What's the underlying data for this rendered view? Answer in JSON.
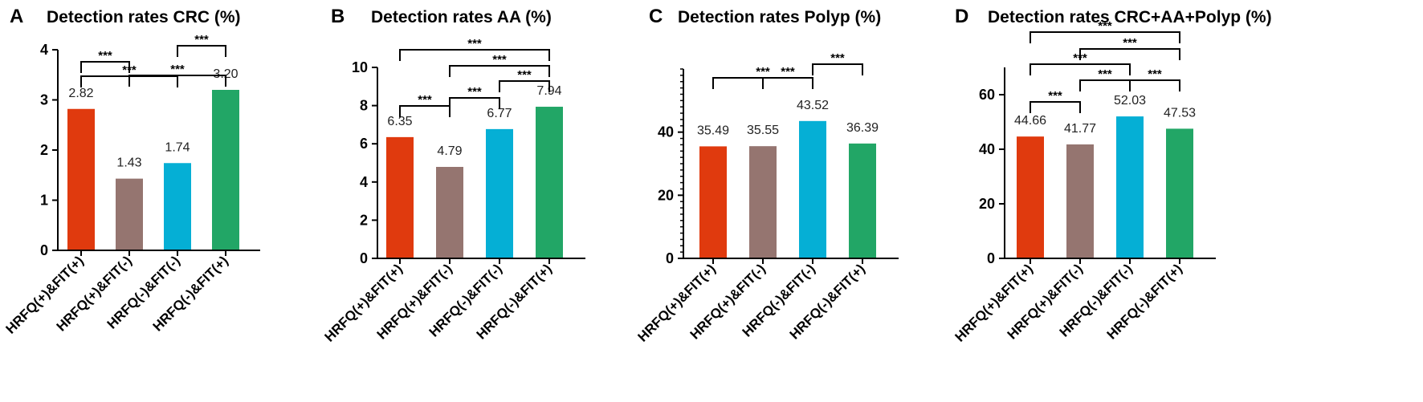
{
  "colors": [
    "#e03a0e",
    "#957570",
    "#05afd5",
    "#22a666"
  ],
  "chart_data": [
    {
      "type": "bar",
      "panel": "A",
      "title": "Detection rates CRC (%)",
      "categories": [
        "HRFQ(+)&FIT(+)",
        "HRFQ(+)&FIT(-)",
        "HRFQ(-)&FIT(-)",
        "HRFQ(-)&FIT(+)"
      ],
      "values": [
        2.82,
        1.43,
        1.74,
        3.2
      ],
      "value_labels": [
        "2.82",
        "1.43",
        "1.74",
        "3.20"
      ],
      "ylim": [
        0,
        4
      ],
      "yticks": [
        0,
        1,
        2,
        3,
        4
      ],
      "minor_ticks": false,
      "significance": [
        {
          "from": 0,
          "to": 1,
          "label": "***"
        },
        {
          "from": 0,
          "to": 2,
          "label": "***"
        },
        {
          "from": 2,
          "to": 3,
          "label": "***"
        },
        {
          "from": 1,
          "to": 3,
          "label": "***"
        }
      ]
    },
    {
      "type": "bar",
      "panel": "B",
      "title": "Detection rates AA (%)",
      "categories": [
        "HRFQ(+)&FIT(+)",
        "HRFQ(+)&FIT(-)",
        "HRFQ(-)&FIT(-)",
        "HRFQ(-)&FIT(+)"
      ],
      "values": [
        6.35,
        4.79,
        6.77,
        7.94
      ],
      "value_labels": [
        "6.35",
        "4.79",
        "6.77",
        "7.94"
      ],
      "ylim": [
        0,
        10
      ],
      "yticks": [
        0,
        2,
        4,
        6,
        8,
        10
      ],
      "minor_ticks": false,
      "significance": [
        {
          "from": 0,
          "to": 1,
          "label": "***"
        },
        {
          "from": 1,
          "to": 2,
          "label": "***"
        },
        {
          "from": 2,
          "to": 3,
          "label": "***"
        },
        {
          "from": 1,
          "to": 3,
          "label": "***"
        },
        {
          "from": 0,
          "to": 3,
          "label": "***"
        }
      ]
    },
    {
      "type": "bar",
      "panel": "C",
      "title": "Detection rates Polyp (%)",
      "categories": [
        "HRFQ(+)&FIT(+)",
        "HRFQ(+)&FIT(-)",
        "HRFQ(-)&FIT(-)",
        "HRFQ(-)&FIT(+)"
      ],
      "values": [
        35.49,
        35.55,
        43.52,
        36.39
      ],
      "value_labels": [
        "35.49",
        "35.55",
        "43.52",
        "36.39"
      ],
      "ylim": [
        0,
        60
      ],
      "yticks": [
        0,
        20,
        40
      ],
      "minor_ticks": true,
      "significance": [
        {
          "from": 1,
          "to": 2,
          "label": "***"
        },
        {
          "from": 2,
          "to": 3,
          "label": "***"
        },
        {
          "from": 0,
          "to": 2,
          "label": "***"
        }
      ]
    },
    {
      "type": "bar",
      "panel": "D",
      "title": "Detection rates CRC+AA+Polyp (%)",
      "categories": [
        "HRFQ(+)&FIT(+)",
        "HRFQ(+)&FIT(-)",
        "HRFQ(-)&FIT(-)",
        "HRFQ(-)&FIT(+)"
      ],
      "values": [
        44.66,
        41.77,
        52.03,
        47.53
      ],
      "value_labels": [
        "44.66",
        "41.77",
        "52.03",
        "47.53"
      ],
      "ylim": [
        0,
        70
      ],
      "yticks": [
        0,
        20,
        40,
        60
      ],
      "minor_ticks": false,
      "significance": [
        {
          "from": 0,
          "to": 1,
          "label": "***"
        },
        {
          "from": 1,
          "to": 2,
          "label": "***"
        },
        {
          "from": 2,
          "to": 3,
          "label": "***"
        },
        {
          "from": 0,
          "to": 2,
          "label": "***"
        },
        {
          "from": 1,
          "to": 3,
          "label": "***"
        },
        {
          "from": 0,
          "to": 3,
          "label": "***"
        }
      ]
    }
  ]
}
